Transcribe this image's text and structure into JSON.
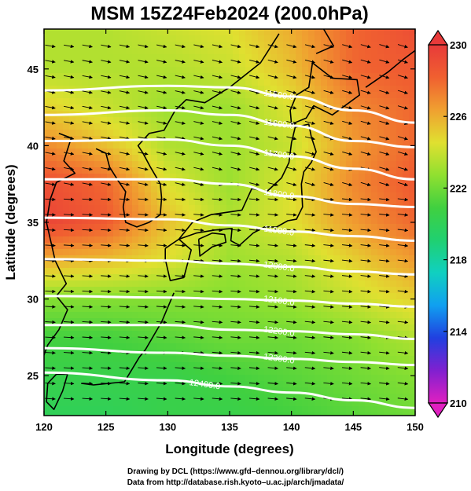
{
  "chart_data": {
    "type": "heatmap",
    "title": "MSM 15Z24Feb2024 (200.0hPa)",
    "xlabel": "Longitude (degrees)",
    "ylabel": "Latitude  (degrees)",
    "xlim": [
      120,
      150
    ],
    "ylim": [
      22.4,
      47.6
    ],
    "x_ticks": [
      120,
      125,
      130,
      135,
      140,
      145,
      150
    ],
    "y_ticks": [
      25,
      30,
      35,
      40,
      45
    ],
    "x_tick_labels": [
      "120",
      "125",
      "130",
      "135",
      "140",
      "145",
      "150"
    ],
    "y_tick_labels": [
      "25",
      "30",
      "35",
      "40",
      "45"
    ],
    "colorbar": {
      "min": 210,
      "max": 230,
      "ticks": [
        210,
        214,
        218,
        222,
        226,
        230
      ],
      "tick_labels": [
        "210",
        "214",
        "218",
        "222",
        "226",
        "230"
      ],
      "colors": [
        "#e020c0",
        "#8020d0",
        "#2040e0",
        "#10a0f0",
        "#10d0c0",
        "#20d070",
        "#40d040",
        "#90e030",
        "#e0e030",
        "#f0a030",
        "#f06030",
        "#e83a3a"
      ]
    },
    "temperature_field": {
      "lon": [
        120,
        125,
        130,
        135,
        140,
        145,
        150
      ],
      "lat": [
        47.5,
        45,
        42.5,
        40,
        37.5,
        35,
        32.5,
        30,
        27.5,
        25,
        22.5
      ],
      "values": [
        [
          223.5,
          223.5,
          224.0,
          224.5,
          226.0,
          228.0,
          229.0
        ],
        [
          223.5,
          223.5,
          223.5,
          224.0,
          225.5,
          228.0,
          228.5
        ],
        [
          225.0,
          224.0,
          223.0,
          223.0,
          224.5,
          227.0,
          228.0
        ],
        [
          227.0,
          225.5,
          223.5,
          223.0,
          224.0,
          226.5,
          228.0
        ],
        [
          229.0,
          228.0,
          224.5,
          223.0,
          224.5,
          227.0,
          228.5
        ],
        [
          229.5,
          228.5,
          225.5,
          223.5,
          224.5,
          226.5,
          228.0
        ],
        [
          226.0,
          225.5,
          224.5,
          223.0,
          223.5,
          225.0,
          226.5
        ],
        [
          222.5,
          222.5,
          222.5,
          222.5,
          223.0,
          224.0,
          225.0
        ],
        [
          221.0,
          221.0,
          221.5,
          222.0,
          222.0,
          222.5,
          223.5
        ],
        [
          220.5,
          220.5,
          220.5,
          221.0,
          221.5,
          222.0,
          222.5
        ],
        [
          220.0,
          220.0,
          220.5,
          220.5,
          221.0,
          221.5,
          222.0
        ]
      ]
    },
    "height_contours": [
      {
        "value": 11500,
        "label": "11500.0",
        "lat_at_lon": {
          "120": 43.6,
          "130": 43.9,
          "135": 43.8,
          "140": 43.2,
          "145": 42.3,
          "150": 41.5
        }
      },
      {
        "value": 11600,
        "label": "11600.0",
        "lat_at_lon": {
          "120": 42.0,
          "130": 42.3,
          "135": 42.0,
          "140": 41.3,
          "145": 40.3,
          "150": 39.9
        }
      },
      {
        "value": 11700,
        "label": "11700.0",
        "lat_at_lon": {
          "120": 40.3,
          "130": 40.4,
          "135": 40.0,
          "140": 39.3,
          "145": 38.5,
          "150": 37.8
        }
      },
      {
        "value": 11800,
        "label": "11800.0",
        "lat_at_lon": {
          "120": 37.8,
          "130": 37.8,
          "135": 37.5,
          "140": 36.7,
          "145": 36.2,
          "150": 36.0
        }
      },
      {
        "value": 11900,
        "label": "11900.0",
        "lat_at_lon": {
          "120": 35.3,
          "130": 35.2,
          "135": 34.8,
          "140": 34.4,
          "145": 34.1,
          "150": 33.8
        }
      },
      {
        "value": 12000,
        "label": "12000.0",
        "lat_at_lon": {
          "120": 32.6,
          "130": 32.5,
          "135": 32.3,
          "140": 32.1,
          "145": 31.8,
          "150": 31.6
        }
      },
      {
        "value": 12100,
        "label": "12100.0",
        "lat_at_lon": {
          "120": 30.2,
          "130": 30.1,
          "135": 30.0,
          "140": 29.9,
          "145": 29.7,
          "150": 29.5
        }
      },
      {
        "value": 12200,
        "label": "12200.0",
        "lat_at_lon": {
          "120": 28.3,
          "130": 28.3,
          "135": 28.0,
          "140": 27.9,
          "145": 27.7,
          "150": 27.4
        }
      },
      {
        "value": 12300,
        "label": "12300.0",
        "lat_at_lon": {
          "120": 26.8,
          "130": 26.5,
          "135": 26.3,
          "140": 26.1,
          "145": 25.9,
          "150": 25.7
        }
      },
      {
        "value": 12400,
        "label": "12400.0",
        "lat_at_lon": {
          "120": 25.2,
          "130": 24.7,
          "135": 24.3,
          "140": 23.9,
          "145": 23.4,
          "150": 22.9
        }
      }
    ],
    "wind_vectors": "westerly flow across the whole domain, tilting slightly southward toward the east",
    "grid": false
  },
  "credits": {
    "line1": "Drawing by DCL (https://www.gfd–dennou.org/library/dcl/)",
    "line2": "Data from http://database.rish.kyoto–u.ac.jp/arch/jmadata/"
  }
}
